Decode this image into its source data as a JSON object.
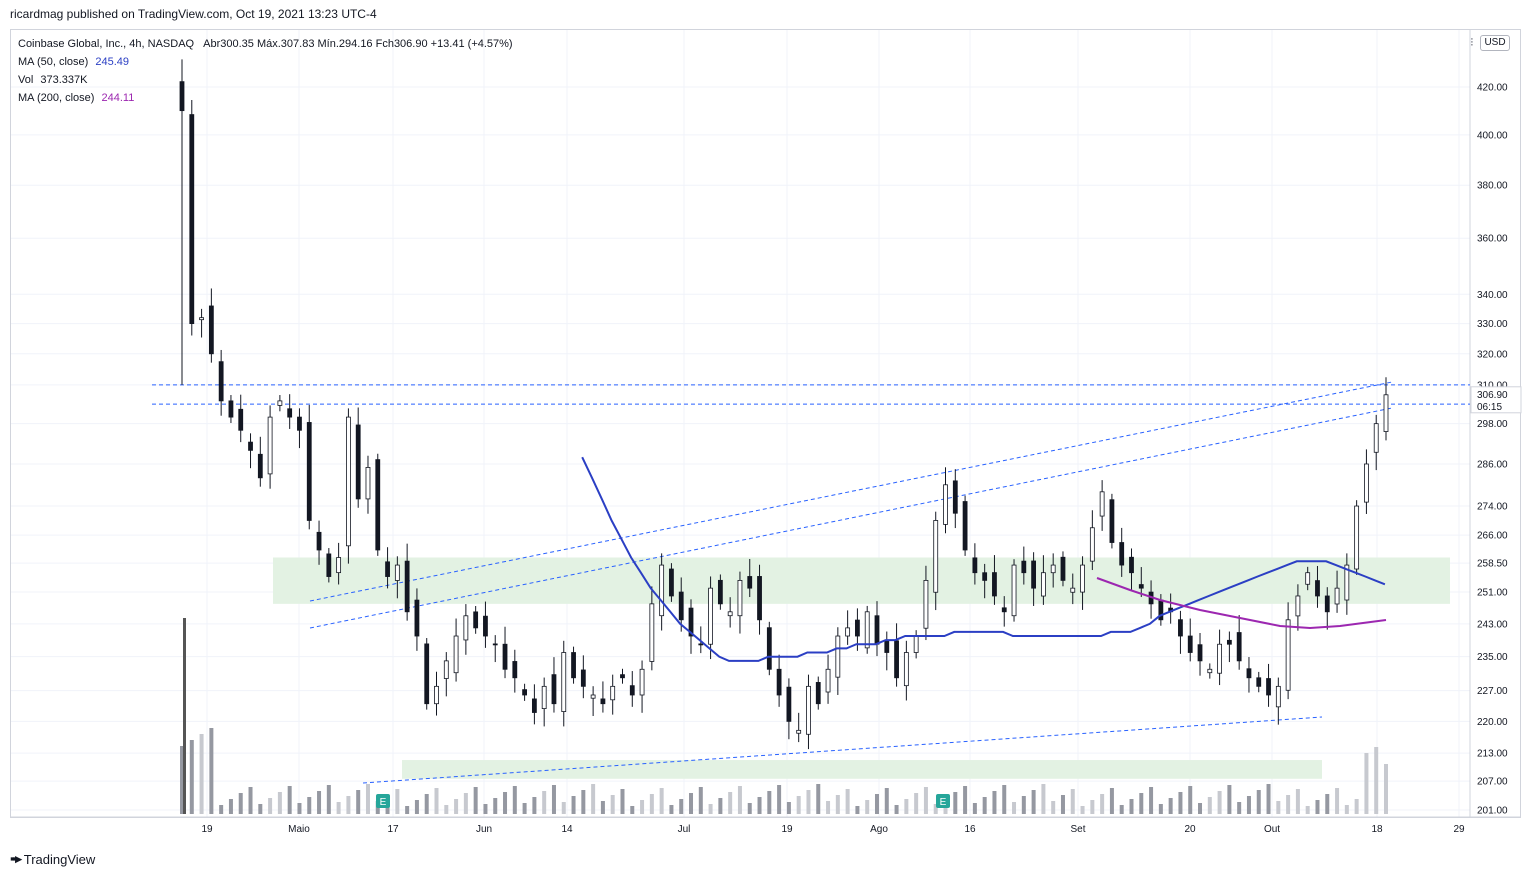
{
  "header": {
    "published_line": "ricardmag published on TradingView.com, Oct 19, 2021 13:23 UTC-4"
  },
  "legend": {
    "symbol": "Coinbase Global, Inc., 4h, NASDAQ",
    "ohlc": "Abr300.35  Máx.307.83  Mín.294.16  Fch306.90  +13.41 (+4.57%)",
    "ma50_label": "MA (50, close)",
    "ma50_value": "245.49",
    "vol_label": "Vol",
    "vol_value": "373.337K",
    "ma200_label": "MA (200, close)",
    "ma200_value": "244.11"
  },
  "currency_button": "USD",
  "settings_icon": "gear-icon",
  "footer": {
    "brand": "TradingView",
    "logo_icon": "tradingview-logo-icon"
  },
  "price_label": {
    "last": "306.90",
    "countdown": "06:15"
  },
  "colors": {
    "up": "#ffffff",
    "down": "#131722",
    "ma50": "#2b3fc4",
    "ma200": "#9c27b0",
    "trendline": "#2962ff",
    "zone": "#e3f2e3",
    "volume": "#b2b5be",
    "grid": "#f0f3fa"
  },
  "chart_data": {
    "type": "candlestick",
    "scale": "log",
    "currency": "USD",
    "y_ticks": [
      201,
      207,
      213,
      220,
      227,
      235,
      243,
      251,
      258.5,
      266,
      274,
      286,
      298,
      310,
      320,
      330,
      340,
      360,
      380,
      400,
      420
    ],
    "y_tick_labels": [
      "201.00",
      "207.00",
      "213.00",
      "220.00",
      "227.00",
      "235.00",
      "243.00",
      "251.00",
      "258.50",
      "266.00",
      "274.00",
      "286.00",
      "298.00",
      "310.00",
      "320.00",
      "330.00",
      "340.00",
      "360.00",
      "380.00",
      "400.00",
      "420.00"
    ],
    "x_tick_labels": [
      "19",
      "Maio",
      "17",
      "Jun",
      "14",
      "Jul",
      "19",
      "Ago",
      "16",
      "Set",
      "20",
      "Out",
      "18",
      "29"
    ],
    "ohlc_last": {
      "open": 300.35,
      "high": 307.83,
      "low": 294.16,
      "close": 306.9,
      "change": 13.41,
      "change_pct": 4.57
    },
    "horizontal_levels": [
      310.0,
      304.0
    ],
    "zones": [
      {
        "low": 248.0,
        "high": 260.0
      },
      {
        "low": 207.5,
        "high": 211.5
      }
    ],
    "earnings_markers": [
      "E",
      "E"
    ],
    "series": [
      {
        "name": "Coinbase Global, Inc.",
        "kind": "candles",
        "close": [
          410,
          330,
          332,
          320,
          305,
          300,
          296,
          290,
          282,
          300,
          305,
          300,
          296,
          270,
          262,
          255,
          260,
          300,
          276,
          285,
          262,
          255,
          258,
          246,
          240,
          224,
          228,
          234,
          240,
          245,
          242,
          240,
          238,
          232,
          230,
          226,
          222,
          228,
          224,
          236,
          230,
          228,
          226,
          224,
          228,
          230,
          226,
          232,
          248,
          258,
          250,
          244,
          240,
          238,
          252,
          248,
          246,
          254,
          252,
          244,
          232,
          226,
          220,
          218,
          228,
          224,
          232,
          240,
          242,
          240,
          246,
          238,
          236,
          230,
          236,
          240,
          254,
          270,
          280,
          272,
          262,
          256,
          254,
          250,
          246,
          258,
          256,
          252,
          256,
          258,
          254,
          252,
          258,
          268,
          278,
          264,
          258,
          256,
          252,
          248,
          244,
          246,
          240,
          236,
          234,
          232,
          238,
          238,
          234,
          230,
          228,
          226,
          228,
          244,
          250,
          256,
          250,
          246,
          252,
          258,
          274,
          286,
          298,
          306.9
        ]
      },
      {
        "name": "MA (50, close)",
        "kind": "line",
        "values": [
          null,
          null,
          null,
          null,
          null,
          null,
          null,
          null,
          null,
          null,
          null,
          null,
          null,
          null,
          null,
          null,
          null,
          null,
          288,
          282,
          276,
          270,
          265,
          260,
          256,
          252,
          249,
          246,
          243,
          241,
          239,
          237,
          235,
          234,
          234,
          234,
          234,
          235,
          235,
          235,
          235,
          236,
          236,
          236,
          237,
          237,
          238,
          238,
          238,
          239,
          239,
          240,
          240,
          240,
          240,
          240,
          241,
          241,
          241,
          241,
          241,
          241,
          240,
          240,
          240,
          240,
          240,
          240,
          240,
          240,
          240,
          240,
          241,
          241,
          241,
          242,
          243,
          245,
          246,
          247,
          248,
          249,
          250,
          251,
          252,
          253,
          254,
          255,
          256,
          257,
          258,
          259,
          259,
          259,
          259,
          258,
          257,
          256,
          255,
          254,
          253,
          252,
          251,
          250,
          249,
          248,
          247,
          246,
          245,
          244,
          243,
          242,
          242,
          242,
          242,
          243,
          243,
          243,
          243,
          244,
          244,
          245,
          245.49
        ]
      },
      {
        "name": "MA (200, close)",
        "kind": "line",
        "values_note_start": "Set",
        "values_end": 244.11
      }
    ],
    "volume_label": "Vol",
    "volume_last": "373.337K"
  }
}
